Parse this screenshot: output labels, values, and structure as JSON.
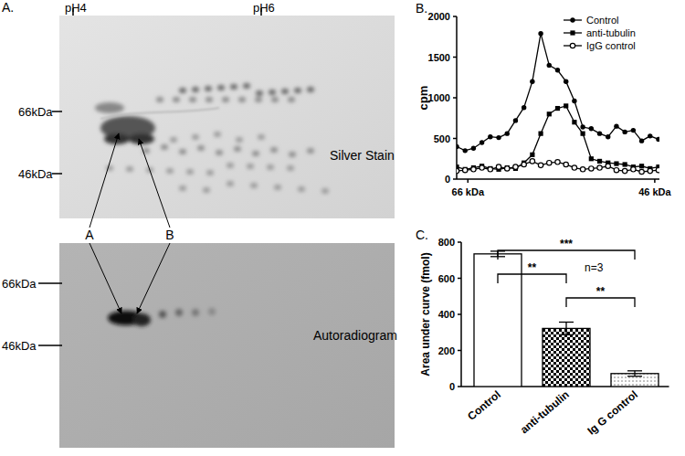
{
  "panel_a": {
    "panel_label": "A.",
    "ph_labels": [
      "pH4",
      "pH6"
    ],
    "spot_labels": [
      "A",
      "B"
    ],
    "top": {
      "title": "Silver Stain",
      "mw_labels": [
        "66kDa",
        "46kDa"
      ]
    },
    "bottom": {
      "title": "Autoradiogram",
      "mw_labels": [
        "66kDa",
        "46kDa"
      ]
    }
  },
  "chart_data": [
    {
      "type": "line",
      "panel_label": "B.",
      "y_label": "cpm",
      "x": [
        67.2,
        66.3,
        65.4,
        64.5,
        63.6,
        62.7,
        61.8,
        60.9,
        60.0,
        59.1,
        58.2,
        57.3,
        56.4,
        55.5,
        54.6,
        53.7,
        52.8,
        51.9,
        51.0,
        50.1,
        49.2,
        48.3,
        47.4,
        46.5,
        45.6
      ],
      "xlim": [
        67.2,
        45.5
      ],
      "xticks": [
        {
          "value": 66,
          "label": "66 kDa"
        },
        {
          "value": 46,
          "label": "46 kDa"
        }
      ],
      "ylim": [
        0,
        2000
      ],
      "yticks": [
        0,
        500,
        1000,
        1500,
        2000
      ],
      "grid": false,
      "legend": "upper right",
      "series": [
        {
          "name": "Control",
          "color": "#000000",
          "marker": "circle",
          "line_style": "solid",
          "values": [
            400,
            350,
            380,
            450,
            520,
            510,
            560,
            720,
            880,
            1200,
            1790,
            1400,
            1340,
            1200,
            960,
            640,
            620,
            560,
            520,
            650,
            580,
            600,
            470,
            530,
            490
          ]
        },
        {
          "name": "anti-tubulin",
          "color": "#000000",
          "marker": "square",
          "line_style": "solid",
          "values": [
            150,
            120,
            140,
            160,
            130,
            120,
            140,
            130,
            200,
            300,
            560,
            800,
            870,
            900,
            700,
            560,
            250,
            220,
            200,
            190,
            180,
            150,
            160,
            130,
            150
          ]
        },
        {
          "name": "IgG control",
          "color": "#000000",
          "marker": "circle-open",
          "line_style": "solid",
          "values": [
            100,
            110,
            120,
            140,
            120,
            150,
            130,
            150,
            180,
            220,
            170,
            200,
            210,
            180,
            140,
            120,
            130,
            140,
            160,
            110,
            100,
            120,
            90,
            100,
            110
          ]
        }
      ]
    },
    {
      "type": "bar",
      "panel_label": "C.",
      "y_label": "Area under curve (fmol)",
      "categories": [
        "Control",
        "anti-tubulin",
        "Ig G control"
      ],
      "values": [
        735,
        322,
        72
      ],
      "errors": [
        15,
        35,
        15
      ],
      "color": "#ffffff",
      "ylim": [
        0,
        800
      ],
      "yticks": [
        0,
        200,
        400,
        600,
        800
      ],
      "grid": false,
      "annotations": [
        {
          "text": "***",
          "from": 0,
          "to": 2
        },
        {
          "text": "**",
          "from": 0,
          "to": 1
        },
        {
          "text": "**",
          "from": 1,
          "to": 2
        },
        {
          "text": "n=3"
        }
      ]
    }
  ]
}
